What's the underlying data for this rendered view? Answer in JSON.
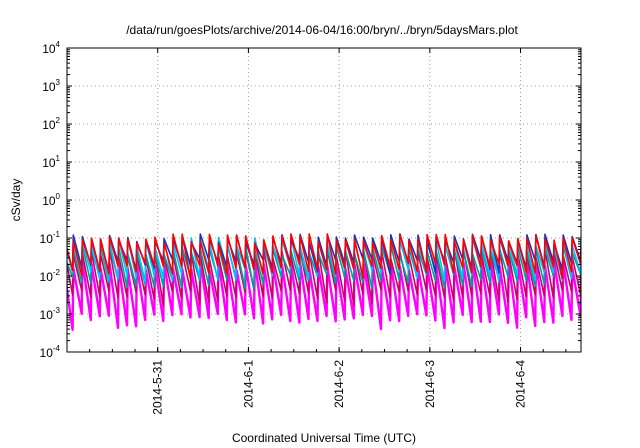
{
  "chart_data": {
    "type": "line",
    "title": "/data/run/goesPlots/archive/2014-06-04/16:00/bryn/../bryn/5daysMars.plot",
    "xlabel": "Coordinated Universal Time (UTC)",
    "ylabel": "cSv/day",
    "yscale": "log",
    "ylim": [
      0.0001,
      10000
    ],
    "y_ticks": [
      {
        "base": "10",
        "exp": "-4"
      },
      {
        "base": "10",
        "exp": "-3"
      },
      {
        "base": "10",
        "exp": "-2"
      },
      {
        "base": "10",
        "exp": "-1"
      },
      {
        "base": "10",
        "exp": "0"
      },
      {
        "base": "10",
        "exp": "1"
      },
      {
        "base": "10",
        "exp": "2"
      },
      {
        "base": "10",
        "exp": "3"
      },
      {
        "base": "10",
        "exp": "4"
      }
    ],
    "xlim": [
      "2014-05-30 00:00",
      "2014-06-04 16:00"
    ],
    "x_tick_labels": [
      "2014-5-31",
      "2014-6-1",
      "2014-6-2",
      "2014-6-3",
      "2014-6-4"
    ],
    "x_tick_dates": [
      "2014-05-31",
      "2014-06-01",
      "2014-06-02",
      "2014-06-03",
      "2014-06-04"
    ],
    "grid": true,
    "series_pattern": {
      "description": "dense periodic sawtooth, roughly 10 cycles per day",
      "cycles_per_day": 10,
      "bands": [
        {
          "color": "#ff00ff",
          "peak": 0.02,
          "trough": 0.0007
        },
        {
          "color": "#cc0066",
          "peak": 0.04,
          "trough": 0.003
        },
        {
          "color": "#00a0a0",
          "peak": 0.05,
          "trough": 0.008
        },
        {
          "color": "#00c0ff",
          "peak": 0.08,
          "trough": 0.012
        },
        {
          "color": "#2030c0",
          "peak": 0.1,
          "trough": 0.02
        },
        {
          "color": "#ff0000",
          "peak": 0.1,
          "trough": 0.015
        }
      ]
    }
  }
}
